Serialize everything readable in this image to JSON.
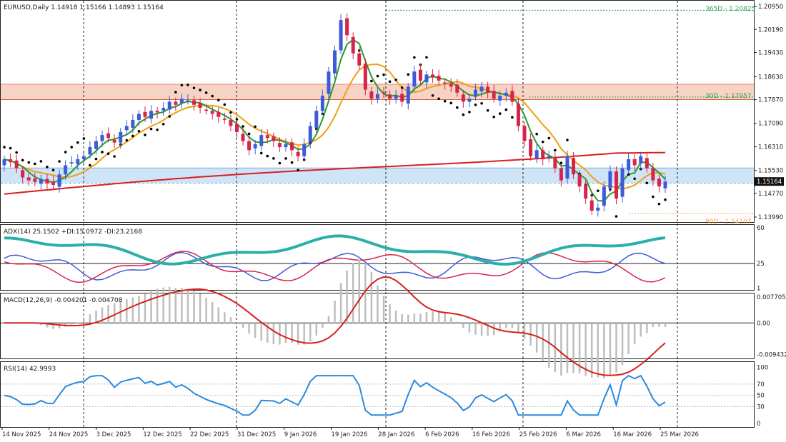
{
  "symbol": {
    "name": "EURUSD",
    "timeframe": "Daily",
    "open": "1.14918",
    "high": "1.15166",
    "low": "1.14893",
    "close": "1.15164"
  },
  "price_axis": {
    "labels": [
      "1.20950",
      "1.20190",
      "1.19430",
      "1.18630",
      "1.17870",
      "1.17090",
      "1.16310",
      "1.15530",
      "1.14770",
      "1.13990"
    ],
    "current_price": "1.15164",
    "current_price_value": 1.15164,
    "range": [
      1.1387,
      1.2107
    ]
  },
  "levels": {
    "d365": {
      "label": "365D - 1.20825",
      "value": 1.20825,
      "color": "#2e9e55"
    },
    "d30": {
      "label": "30D - 1.17957",
      "value": 1.17957,
      "color": "#2e9e55"
    },
    "d90": {
      "label": "90D - 1.14107",
      "value": 1.14107,
      "color": "#f0a040"
    }
  },
  "zones": [
    {
      "from": 1.1787,
      "to": 1.1838,
      "color": "#f7d3c6"
    },
    {
      "from": 1.1511,
      "to": 1.1561,
      "color": "#cfe4f7"
    }
  ],
  "adx": {
    "label": "ADX(14) 25.1502 +DI:15.0972 -DI:23.2168",
    "axis": [
      "60",
      "25",
      "1"
    ],
    "range": [
      0,
      62
    ],
    "level": 25
  },
  "macd": {
    "label": "MACD(12,26,9) -0.004201 -0.004708",
    "axis": [
      "0.007705",
      "0.00",
      "-0.009432"
    ],
    "range": [
      -0.0104,
      0.0086
    ]
  },
  "rsi": {
    "label": "RSI(14) 42.9993",
    "axis": [
      "100",
      "70",
      "50",
      "30",
      "0"
    ],
    "range": [
      -5,
      108
    ],
    "levels": [
      70,
      50,
      30
    ]
  },
  "time_axis": {
    "labels": [
      "14 Nov 2025",
      "24 Nov 2025",
      "3 Dec 2025",
      "12 Dec 2025",
      "22 Dec 2025",
      "31 Dec 2025",
      "9 Jan 2026",
      "19 Jan 2026",
      "28 Jan 2026",
      "6 Feb 2026",
      "16 Feb 2026",
      "25 Feb 2026",
      "6 Mar 2026",
      "16 Mar 2026",
      "25 Mar 2026"
    ]
  },
  "colors": {
    "bull": "#3d5bd8",
    "bear": "#d8234a",
    "ma_fast": "#2a9a2a",
    "ma_mid": "#f0a010",
    "ma_slow": "#d81e1e",
    "adx": "#2ab0a8",
    "plus_di": "#d8234a",
    "minus_di": "#3d5bd8",
    "macd_signal": "#d81e1e",
    "macd_hist": "#bdbdbd",
    "rsi": "#2a8ae0"
  },
  "chart_data": {
    "type": "candlestick",
    "closes": [
      1.159,
      1.158,
      1.156,
      1.153,
      1.152,
      1.1515,
      1.1525,
      1.151,
      1.1505,
      1.154,
      1.157,
      1.158,
      1.159,
      1.16,
      1.163,
      1.165,
      1.167,
      1.166,
      1.1645,
      1.168,
      1.17,
      1.172,
      1.174,
      1.173,
      1.175,
      1.1745,
      1.176,
      1.178,
      1.177,
      1.179,
      1.1785,
      1.177,
      1.176,
      1.175,
      1.174,
      1.173,
      1.172,
      1.17,
      1.168,
      1.165,
      1.162,
      1.164,
      1.167,
      1.166,
      1.165,
      1.163,
      1.164,
      1.162,
      1.16,
      1.164,
      1.17,
      1.175,
      1.18,
      1.188,
      1.195,
      1.205,
      1.2,
      1.194,
      1.19,
      1.182,
      1.179,
      1.1805,
      1.181,
      1.179,
      1.18,
      1.178,
      1.183,
      1.188,
      1.185,
      1.187,
      1.186,
      1.185,
      1.184,
      1.183,
      1.181,
      1.178,
      1.179,
      1.182,
      1.183,
      1.181,
      1.179,
      1.18,
      1.181,
      1.178,
      1.17,
      1.165,
      1.16,
      1.162,
      1.159,
      1.16,
      1.156,
      1.152,
      1.16,
      1.154,
      1.15,
      1.146,
      1.142,
      1.143,
      1.15,
      1.155,
      1.146,
      1.156,
      1.159,
      1.157,
      1.16,
      1.156,
      1.152,
      1.15,
      1.1516
    ]
  }
}
